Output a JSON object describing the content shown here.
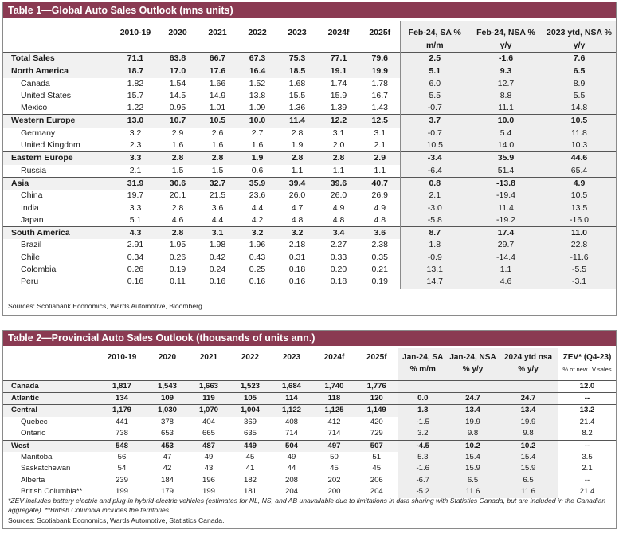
{
  "table1": {
    "title": "Table 1—Global Auto Sales Outlook (mns units)",
    "headers": {
      "years": [
        "2010-19",
        "2020",
        "2021",
        "2022",
        "2023",
        "2024f",
        "2025f"
      ],
      "c1a": "Feb-24, SA %",
      "c1b": "m/m",
      "c2a": "Feb-24, NSA %",
      "c2b": "y/y",
      "c3a": "2023 ytd, NSA %",
      "c3b": "y/y"
    },
    "rows": [
      {
        "label": "Total Sales",
        "values": [
          "71.1",
          "63.8",
          "66.7",
          "67.3",
          "75.3",
          "77.1",
          "79.6",
          "2.5",
          "-1.6",
          "7.6"
        ],
        "bold": true,
        "sub": false,
        "top": true
      },
      {
        "label": "North America",
        "values": [
          "18.7",
          "17.0",
          "17.6",
          "16.4",
          "18.5",
          "19.1",
          "19.9",
          "5.1",
          "9.3",
          "6.5"
        ],
        "bold": true,
        "sub": false,
        "top": true
      },
      {
        "label": "Canada",
        "values": [
          "1.82",
          "1.54",
          "1.66",
          "1.52",
          "1.68",
          "1.74",
          "1.78",
          "6.0",
          "12.7",
          "8.9"
        ],
        "bold": false,
        "sub": true,
        "top": false
      },
      {
        "label": "United States",
        "values": [
          "15.7",
          "14.5",
          "14.9",
          "13.8",
          "15.5",
          "15.9",
          "16.7",
          "5.5",
          "8.8",
          "5.5"
        ],
        "bold": false,
        "sub": true,
        "top": false
      },
      {
        "label": "Mexico",
        "values": [
          "1.22",
          "0.95",
          "1.01",
          "1.09",
          "1.36",
          "1.39",
          "1.43",
          "-0.7",
          "11.1",
          "14.8"
        ],
        "bold": false,
        "sub": true,
        "top": false
      },
      {
        "label": "Western Europe",
        "values": [
          "13.0",
          "10.7",
          "10.5",
          "10.0",
          "11.4",
          "12.2",
          "12.5",
          "3.7",
          "10.0",
          "10.5"
        ],
        "bold": true,
        "sub": false,
        "top": true
      },
      {
        "label": "Germany",
        "values": [
          "3.2",
          "2.9",
          "2.6",
          "2.7",
          "2.8",
          "3.1",
          "3.1",
          "-0.7",
          "5.4",
          "11.8"
        ],
        "bold": false,
        "sub": true,
        "top": false
      },
      {
        "label": "United Kingdom",
        "values": [
          "2.3",
          "1.6",
          "1.6",
          "1.6",
          "1.9",
          "2.0",
          "2.1",
          "10.5",
          "14.0",
          "10.3"
        ],
        "bold": false,
        "sub": true,
        "top": false
      },
      {
        "label": "Eastern Europe",
        "values": [
          "3.3",
          "2.8",
          "2.8",
          "1.9",
          "2.8",
          "2.8",
          "2.9",
          "-3.4",
          "35.9",
          "44.6"
        ],
        "bold": true,
        "sub": false,
        "top": true
      },
      {
        "label": "Russia",
        "values": [
          "2.1",
          "1.5",
          "1.5",
          "0.6",
          "1.1",
          "1.1",
          "1.1",
          "-6.4",
          "51.4",
          "65.4"
        ],
        "bold": false,
        "sub": true,
        "top": false
      },
      {
        "label": "Asia",
        "values": [
          "31.9",
          "30.6",
          "32.7",
          "35.9",
          "39.4",
          "39.6",
          "40.7",
          "0.8",
          "-13.8",
          "4.9"
        ],
        "bold": true,
        "sub": false,
        "top": true
      },
      {
        "label": "China",
        "values": [
          "19.7",
          "20.1",
          "21.5",
          "23.6",
          "26.0",
          "26.0",
          "26.9",
          "2.1",
          "-19.4",
          "10.5"
        ],
        "bold": false,
        "sub": true,
        "top": false
      },
      {
        "label": "India",
        "values": [
          "3.3",
          "2.8",
          "3.6",
          "4.4",
          "4.7",
          "4.9",
          "4.9",
          "-3.0",
          "11.4",
          "13.5"
        ],
        "bold": false,
        "sub": true,
        "top": false
      },
      {
        "label": "Japan",
        "values": [
          "5.1",
          "4.6",
          "4.4",
          "4.2",
          "4.8",
          "4.8",
          "4.8",
          "-5.8",
          "-19.2",
          "-16.0"
        ],
        "bold": false,
        "sub": true,
        "top": false
      },
      {
        "label": "South America",
        "values": [
          "4.3",
          "2.8",
          "3.1",
          "3.2",
          "3.2",
          "3.4",
          "3.6",
          "8.7",
          "17.4",
          "11.0"
        ],
        "bold": true,
        "sub": false,
        "top": true
      },
      {
        "label": "Brazil",
        "values": [
          "2.91",
          "1.95",
          "1.98",
          "1.96",
          "2.18",
          "2.27",
          "2.38",
          "1.8",
          "29.7",
          "22.8"
        ],
        "bold": false,
        "sub": true,
        "top": false
      },
      {
        "label": "Chile",
        "values": [
          "0.34",
          "0.26",
          "0.42",
          "0.43",
          "0.31",
          "0.33",
          "0.35",
          "-0.9",
          "-14.4",
          "-11.6"
        ],
        "bold": false,
        "sub": true,
        "top": false
      },
      {
        "label": "Colombia",
        "values": [
          "0.26",
          "0.19",
          "0.24",
          "0.25",
          "0.18",
          "0.20",
          "0.21",
          "13.1",
          "1.1",
          "-5.5"
        ],
        "bold": false,
        "sub": true,
        "top": false
      },
      {
        "label": "Peru",
        "values": [
          "0.16",
          "0.11",
          "0.16",
          "0.16",
          "0.16",
          "0.18",
          "0.19",
          "14.7",
          "4.6",
          "-3.1"
        ],
        "bold": false,
        "sub": true,
        "top": false
      }
    ],
    "source": "Sources: Scotiabank Economics, Wards Automotive, Bloomberg."
  },
  "table2": {
    "title": "Table 2—Provincial Auto Sales Outlook (thousands of units ann.)",
    "headers": {
      "years": [
        "2010-19",
        "2020",
        "2021",
        "2022",
        "2023",
        "2024f",
        "2025f"
      ],
      "c1a": "Jan-24, SA",
      "c1b": "% m/m",
      "c2a": "Jan-24, NSA",
      "c2b": "% y/y",
      "c3a": "2024 ytd nsa",
      "c3b": "% y/y",
      "c4a": "ZEV* (Q4-23)",
      "c4b": "% of new LV sales"
    },
    "rows": [
      {
        "label": "Canada",
        "values": [
          "1,817",
          "1,543",
          "1,663",
          "1,523",
          "1,684",
          "1,740",
          "1,776",
          "",
          "",
          "",
          "12.0"
        ],
        "bold": true,
        "sub": false,
        "top": true
      },
      {
        "label": "Atlantic",
        "values": [
          "134",
          "109",
          "119",
          "105",
          "114",
          "118",
          "120",
          "0.0",
          "24.7",
          "24.7",
          "--"
        ],
        "bold": true,
        "sub": false,
        "top": true
      },
      {
        "label": "Central",
        "values": [
          "1,179",
          "1,030",
          "1,070",
          "1,004",
          "1,122",
          "1,125",
          "1,149",
          "1.3",
          "13.4",
          "13.4",
          "13.2"
        ],
        "bold": true,
        "sub": false,
        "top": true
      },
      {
        "label": "Quebec",
        "values": [
          "441",
          "378",
          "404",
          "369",
          "408",
          "412",
          "420",
          "-1.5",
          "19.9",
          "19.9",
          "21.4"
        ],
        "bold": false,
        "sub": true,
        "top": false
      },
      {
        "label": "Ontario",
        "values": [
          "738",
          "653",
          "665",
          "635",
          "714",
          "714",
          "729",
          "3.2",
          "9.8",
          "9.8",
          "8.2"
        ],
        "bold": false,
        "sub": true,
        "top": false
      },
      {
        "label": "West",
        "values": [
          "548",
          "453",
          "487",
          "449",
          "504",
          "497",
          "507",
          "-4.5",
          "10.2",
          "10.2",
          "--"
        ],
        "bold": true,
        "sub": false,
        "top": true
      },
      {
        "label": "Manitoba",
        "values": [
          "56",
          "47",
          "49",
          "45",
          "49",
          "50",
          "51",
          "5.3",
          "15.4",
          "15.4",
          "3.5"
        ],
        "bold": false,
        "sub": true,
        "top": false
      },
      {
        "label": "Saskatchewan",
        "values": [
          "54",
          "42",
          "43",
          "41",
          "44",
          "45",
          "45",
          "-1.6",
          "15.9",
          "15.9",
          "2.1"
        ],
        "bold": false,
        "sub": true,
        "top": false
      },
      {
        "label": "Alberta",
        "values": [
          "239",
          "184",
          "196",
          "182",
          "208",
          "202",
          "206",
          "-6.7",
          "6.5",
          "6.5",
          "--"
        ],
        "bold": false,
        "sub": true,
        "top": false
      },
      {
        "label": "British Columbia**",
        "values": [
          "199",
          "179",
          "199",
          "181",
          "204",
          "200",
          "204",
          "-5.2",
          "11.6",
          "11.6",
          "21.4"
        ],
        "bold": false,
        "sub": true,
        "top": false
      }
    ],
    "footnote1": "*ZEV includes battery electric and plug-in hybrid electric vehicles (estimates for NL, NS, and AB unavailable due to limitations in data sharing with Statistics Canada, but are included in the Canadian",
    "footnote2": "aggregate). **British Columbia includes the territories.",
    "source": "Sources: Scotiabank Economics, Wards Automotive, Statistics Canada."
  }
}
